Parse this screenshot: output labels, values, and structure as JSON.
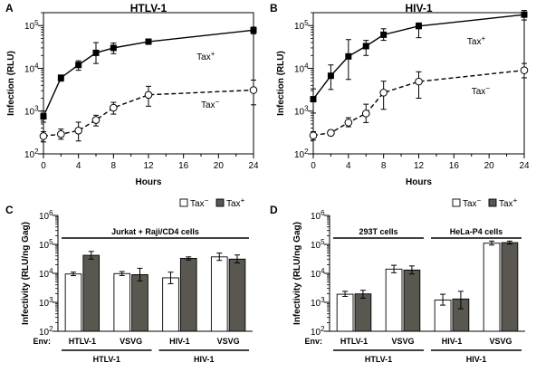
{
  "chart_data": [
    {
      "panel": "A",
      "type": "line",
      "title": "HTLV-1",
      "xlabel": "Hours",
      "ylabel": "Infection (RLU)",
      "yscale": "log",
      "xlim": [
        0,
        24
      ],
      "ylim": [
        100,
        200000
      ],
      "xticks": [
        "0",
        "4",
        "8",
        "12",
        "16",
        "20",
        "24"
      ],
      "yticks": [
        "10",
        "10",
        "10",
        "10"
      ],
      "ytick_exps": [
        "2",
        "3",
        "4",
        "5"
      ],
      "series": [
        {
          "name": "Tax",
          "sup": "+",
          "marker": "filled-square",
          "line": "solid",
          "x": [
            0,
            2,
            4,
            6,
            8,
            12,
            24
          ],
          "y": [
            750,
            6000,
            12000,
            23000,
            30000,
            42000,
            78000
          ],
          "err_low": [
            550,
            5000,
            9000,
            13000,
            22000,
            37000,
            64000
          ],
          "err_high": [
            1000,
            7000,
            15000,
            40000,
            39000,
            46000,
            92000
          ]
        },
        {
          "name": "Tax",
          "sup": "−",
          "marker": "open-circle",
          "line": "dashed",
          "x": [
            0,
            2,
            4,
            6,
            8,
            12,
            24
          ],
          "y": [
            260,
            290,
            350,
            620,
            1200,
            2400,
            3100
          ],
          "err_low": [
            190,
            220,
            200,
            450,
            850,
            1300,
            1400
          ],
          "err_high": [
            330,
            380,
            550,
            800,
            1600,
            3800,
            5300
          ]
        }
      ]
    },
    {
      "panel": "B",
      "type": "line",
      "title": "HIV-1",
      "xlabel": "Hours",
      "ylabel": "Infection (RLU)",
      "yscale": "log",
      "xlim": [
        0,
        24
      ],
      "ylim": [
        100,
        200000
      ],
      "xticks": [
        "0",
        "4",
        "8",
        "12",
        "16",
        "20",
        "24"
      ],
      "yticks": [
        "10",
        "10",
        "10",
        "10"
      ],
      "ytick_exps": [
        "2",
        "3",
        "4",
        "5"
      ],
      "series": [
        {
          "name": "Tax",
          "sup": "+",
          "marker": "filled-square",
          "line": "solid",
          "x": [
            0,
            2,
            4,
            6,
            8,
            12,
            24
          ],
          "y": [
            1900,
            6700,
            19000,
            33000,
            61000,
            97000,
            180000
          ],
          "err_low": [
            900,
            3200,
            5500,
            20000,
            45000,
            52000,
            135000
          ],
          "err_high": [
            3300,
            12000,
            47000,
            45000,
            84000,
            115000,
            225000
          ]
        },
        {
          "name": "Tax",
          "sup": "−",
          "marker": "open-circle",
          "line": "dashed",
          "x": [
            0,
            2,
            4,
            6,
            8,
            12,
            24
          ],
          "y": [
            270,
            310,
            540,
            880,
            2700,
            4900,
            9000
          ],
          "err_low": [
            210,
            270,
            430,
            540,
            1100,
            2000,
            6000
          ],
          "err_high": [
            330,
            360,
            700,
            1450,
            5000,
            8300,
            13000
          ]
        }
      ]
    },
    {
      "panel": "C",
      "type": "bar",
      "ylabel": "Infectivity (RLU/ng Gag)",
      "yscale": "log",
      "ylim": [
        100,
        1000000
      ],
      "yticks": [
        "10",
        "10",
        "10",
        "10",
        "10"
      ],
      "ytick_exps": [
        "2",
        "3",
        "4",
        "5",
        "6"
      ],
      "group_label": "Jurkat + Raji/CD4 cells",
      "env_prefix": "Env:",
      "categories": [
        "HTLV-1",
        "VSVG",
        "HIV-1",
        "VSVG"
      ],
      "bottom_groups": [
        "HTLV-1",
        "HIV-1"
      ],
      "legend": [
        {
          "name": "Tax",
          "sup": "−",
          "color": "#ffffff"
        },
        {
          "name": "Tax",
          "sup": "+",
          "color": "#5a5650"
        }
      ],
      "series": [
        {
          "name": "Tax−",
          "values": [
            9500,
            9800,
            7000,
            37000
          ],
          "err_low": [
            8300,
            8400,
            4400,
            28000
          ],
          "err_high": [
            11000,
            11500,
            11000,
            50000
          ]
        },
        {
          "name": "Tax+",
          "values": [
            42000,
            9000,
            33000,
            31000
          ],
          "err_low": [
            31000,
            5500,
            29000,
            23000
          ],
          "err_high": [
            57000,
            15000,
            37000,
            43000
          ]
        }
      ]
    },
    {
      "panel": "D",
      "type": "bar",
      "ylabel": "Infectivity (RLU/ng Gag)",
      "yscale": "log",
      "ylim": [
        100,
        1000000
      ],
      "yticks": [
        "10",
        "10",
        "10",
        "10",
        "10"
      ],
      "ytick_exps": [
        "2",
        "3",
        "4",
        "5",
        "6"
      ],
      "group_labels": [
        "293T cells",
        "HeLa-P4 cells"
      ],
      "env_prefix": "Env:",
      "categories": [
        "HTLV-1",
        "VSVG",
        "HIV-1",
        "VSVG"
      ],
      "bottom_groups": [
        "HTLV-1",
        "HIV-1"
      ],
      "legend": [
        {
          "name": "Tax",
          "sup": "−",
          "color": "#ffffff"
        },
        {
          "name": "Tax",
          "sup": "+",
          "color": "#5a5650"
        }
      ],
      "series": [
        {
          "name": "Tax−",
          "values": [
            1900,
            14000,
            1200,
            110000
          ],
          "err_low": [
            1600,
            10500,
            800,
            95000
          ],
          "err_high": [
            2400,
            19000,
            1900,
            130000
          ]
        },
        {
          "name": "Tax+",
          "values": [
            1950,
            13000,
            1300,
            115000
          ],
          "err_low": [
            1400,
            9500,
            600,
            103000
          ],
          "err_high": [
            2600,
            18000,
            2400,
            130000
          ]
        }
      ]
    }
  ]
}
